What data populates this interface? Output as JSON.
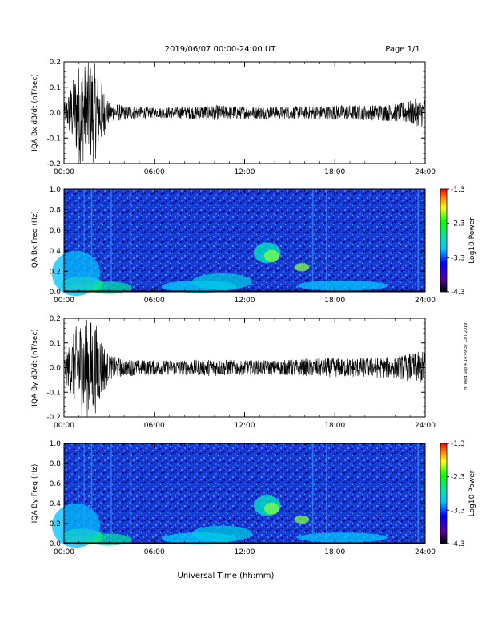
{
  "header": {
    "date_range": "2019/06/07  00:00-24:00 UT",
    "page": "Page 1/1"
  },
  "footer": {
    "xlabel": "Universal Time (hh:mm)",
    "stamp": "ml Wed Sep 4 14:49:37 CDT 2019"
  },
  "x_ticks": [
    "00:00",
    "06:00",
    "12:00",
    "18:00",
    "24:00"
  ],
  "chart_data": [
    {
      "type": "line",
      "ylabel": "IQA Bx dB/dt (nT/sec)",
      "ylim": [
        -0.2,
        0.2
      ],
      "yticks": [
        "0.2",
        "0.1",
        "0.0",
        "-0.1",
        "-0.2"
      ],
      "x": [
        "00:00",
        "01:00",
        "02:00",
        "03:00",
        "04:00",
        "06:00",
        "08:00",
        "10:00",
        "12:00",
        "14:00",
        "16:00",
        "18:00",
        "20:00",
        "22:00",
        "24:00"
      ],
      "envelope": [
        0.03,
        0.2,
        0.2,
        0.04,
        0.03,
        0.02,
        0.025,
        0.03,
        0.025,
        0.025,
        0.025,
        0.03,
        0.03,
        0.035,
        0.06
      ]
    },
    {
      "type": "heatmap",
      "ylabel": "IQA Bx Freq (Hz)",
      "ylim": [
        0.0,
        1.0
      ],
      "yticks": [
        "1.0",
        "0.8",
        "0.6",
        "0.4",
        "0.2",
        "0.0"
      ],
      "colorbar": {
        "label": "Log10 Power",
        "ticks": [
          "-1.3",
          "-2.3",
          "-3.3",
          "-4.3"
        ],
        "range": [
          -4.3,
          -1.3
        ]
      }
    },
    {
      "type": "line",
      "ylabel": "IQA By dB/dt (nT/sec)",
      "ylim": [
        -0.2,
        0.2
      ],
      "yticks": [
        "0.2",
        "0.1",
        "0.0",
        "-0.1",
        "-0.2"
      ],
      "x": [
        "00:00",
        "01:00",
        "02:00",
        "03:00",
        "04:00",
        "06:00",
        "08:00",
        "10:00",
        "12:00",
        "14:00",
        "16:00",
        "18:00",
        "20:00",
        "22:00",
        "24:00"
      ],
      "envelope": [
        0.04,
        0.2,
        0.2,
        0.05,
        0.035,
        0.03,
        0.03,
        0.035,
        0.03,
        0.03,
        0.035,
        0.04,
        0.04,
        0.045,
        0.07
      ]
    },
    {
      "type": "heatmap",
      "ylabel": "IQA By Freq (Hz)",
      "ylim": [
        0.0,
        1.0
      ],
      "yticks": [
        "1.0",
        "0.8",
        "0.6",
        "0.4",
        "0.2",
        "0.0"
      ],
      "colorbar": {
        "label": "Log10 Power",
        "ticks": [
          "-1.3",
          "-2.3",
          "-3.3",
          "-4.3"
        ],
        "range": [
          -4.3,
          -1.3
        ]
      }
    }
  ]
}
